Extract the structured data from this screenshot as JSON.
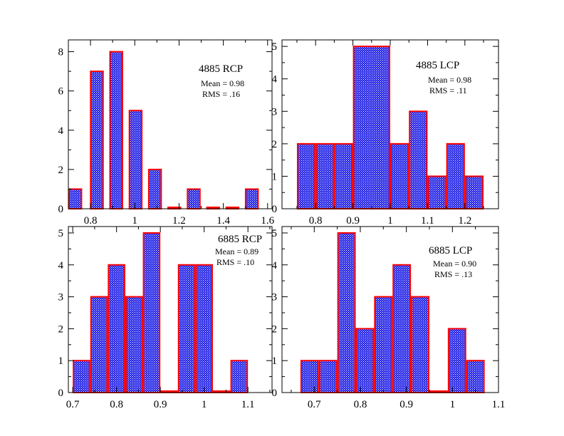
{
  "colors": {
    "bar_fill": "#1a1ae6",
    "bar_stipple": "#ffffff",
    "bar_edge": "#ff0000",
    "axis": "#000000",
    "background": "#ffffff"
  },
  "chart_data": [
    {
      "type": "bar",
      "panel": "top-left",
      "title": "4885 RCP",
      "stats": [
        "Mean = 0.98",
        "RMS = .16"
      ],
      "bin_width": 0.0625,
      "bins": [
        {
          "x0": 0.7,
          "x1": 0.7625,
          "count": 1
        },
        {
          "x0": 0.7975,
          "x1": 0.86,
          "count": 7
        },
        {
          "x0": 0.885,
          "x1": 0.9475,
          "count": 8
        },
        {
          "x0": 0.9725,
          "x1": 1.035,
          "count": 5
        },
        {
          "x0": 1.06,
          "x1": 1.1225,
          "count": 2
        },
        {
          "x0": 1.1475,
          "x1": 1.21,
          "count": 0
        },
        {
          "x0": 1.235,
          "x1": 1.2975,
          "count": 1
        },
        {
          "x0": 1.3225,
          "x1": 1.385,
          "count": 0
        },
        {
          "x0": 1.41,
          "x1": 1.4725,
          "count": 0
        },
        {
          "x0": 1.4975,
          "x1": 1.56,
          "count": 1
        }
      ],
      "xlim": [
        0.7,
        1.62
      ],
      "ylim": [
        0,
        8.6
      ],
      "xticks": [
        0.8,
        1,
        1.2,
        1.4,
        1.6
      ],
      "xtick_labels": [
        "0.8",
        "1",
        "1.2",
        "1.4",
        "1.6"
      ],
      "yticks": [
        0,
        2,
        4,
        6,
        8
      ],
      "ytick_labels": [
        "0",
        "2",
        "4",
        "6",
        "8"
      ],
      "xminor": 0.1,
      "yminor": 1
    },
    {
      "type": "bar",
      "panel": "top-right",
      "title": "4885 LCP",
      "stats": [
        "Mean = 0.98",
        "RMS = .11"
      ],
      "bins": [
        {
          "x0": 0.75,
          "x1": 0.8,
          "count": 2
        },
        {
          "x0": 0.8,
          "x1": 0.85,
          "count": 2
        },
        {
          "x0": 0.85,
          "x1": 0.9,
          "count": 2
        },
        {
          "x0": 0.9,
          "x1": 1.0,
          "count": 5
        },
        {
          "x0": 1.0,
          "x1": 1.05,
          "count": 2
        },
        {
          "x0": 1.05,
          "x1": 1.1,
          "count": 3
        },
        {
          "x0": 1.1,
          "x1": 1.15,
          "count": 1
        },
        {
          "x0": 1.15,
          "x1": 1.2,
          "count": 2
        },
        {
          "x0": 1.2,
          "x1": 1.25,
          "count": 1
        }
      ],
      "xlim": [
        0.71,
        1.29
      ],
      "ylim": [
        0,
        5.2
      ],
      "xticks": [
        0.8,
        0.9,
        1,
        1.1,
        1.2
      ],
      "xtick_labels": [
        "0.8",
        "0.9",
        "1",
        "1.1",
        "1.2"
      ],
      "yticks": [
        0,
        1,
        2,
        3,
        4,
        5
      ],
      "ytick_labels": [
        "0",
        "1",
        "2",
        "3",
        "4",
        "5"
      ],
      "xminor": 0.05,
      "yminor": 0.5
    },
    {
      "type": "bar",
      "panel": "bottom-left",
      "title": "6885 RCP",
      "stats": [
        "Mean = 0.89",
        "RMS = .10"
      ],
      "bins": [
        {
          "x0": 0.7,
          "x1": 0.74,
          "count": 1
        },
        {
          "x0": 0.74,
          "x1": 0.78,
          "count": 3
        },
        {
          "x0": 0.78,
          "x1": 0.82,
          "count": 4
        },
        {
          "x0": 0.82,
          "x1": 0.86,
          "count": 3
        },
        {
          "x0": 0.86,
          "x1": 0.9,
          "count": 5
        },
        {
          "x0": 0.9,
          "x1": 0.94,
          "count": 0
        },
        {
          "x0": 0.94,
          "x1": 0.98,
          "count": 4
        },
        {
          "x0": 0.98,
          "x1": 1.02,
          "count": 4
        },
        {
          "x0": 1.02,
          "x1": 1.06,
          "count": 0
        },
        {
          "x0": 1.06,
          "x1": 1.1,
          "count": 1
        }
      ],
      "xlim": [
        0.69,
        1.155
      ],
      "ylim": [
        0,
        5.2
      ],
      "xticks": [
        0.7,
        0.8,
        0.9,
        1,
        1.1
      ],
      "xtick_labels": [
        "0.7",
        "0.8",
        "0.9",
        "1",
        "1.1"
      ],
      "yticks": [
        0,
        1,
        2,
        3,
        4,
        5
      ],
      "ytick_labels": [
        "0",
        "1",
        "2",
        "3",
        "4",
        "5"
      ],
      "xminor": 0.05,
      "yminor": 0.5
    },
    {
      "type": "bar",
      "panel": "bottom-right",
      "title": "6885 LCP",
      "stats": [
        "Mean = 0.90",
        "RMS = .13"
      ],
      "bins": [
        {
          "x0": 0.67,
          "x1": 0.71,
          "count": 1
        },
        {
          "x0": 0.71,
          "x1": 0.75,
          "count": 1
        },
        {
          "x0": 0.75,
          "x1": 0.79,
          "count": 5
        },
        {
          "x0": 0.79,
          "x1": 0.83,
          "count": 2
        },
        {
          "x0": 0.83,
          "x1": 0.87,
          "count": 3
        },
        {
          "x0": 0.87,
          "x1": 0.91,
          "count": 4
        },
        {
          "x0": 0.91,
          "x1": 0.95,
          "count": 3
        },
        {
          "x0": 0.95,
          "x1": 0.99,
          "count": 0
        },
        {
          "x0": 0.99,
          "x1": 1.03,
          "count": 2
        },
        {
          "x0": 1.03,
          "x1": 1.07,
          "count": 1
        }
      ],
      "xlim": [
        0.63,
        1.1
      ],
      "ylim": [
        0,
        5.2
      ],
      "xticks": [
        0.7,
        0.8,
        0.9,
        1,
        1.1
      ],
      "xtick_labels": [
        "0.7",
        "0.8",
        "0.9",
        "1",
        "1.1"
      ],
      "yticks": [
        0,
        1,
        2,
        3,
        4,
        5
      ],
      "ytick_labels": [
        "0",
        "1",
        "2",
        "3",
        "4",
        "5"
      ],
      "xminor": 0.05,
      "yminor": 0.5
    }
  ]
}
